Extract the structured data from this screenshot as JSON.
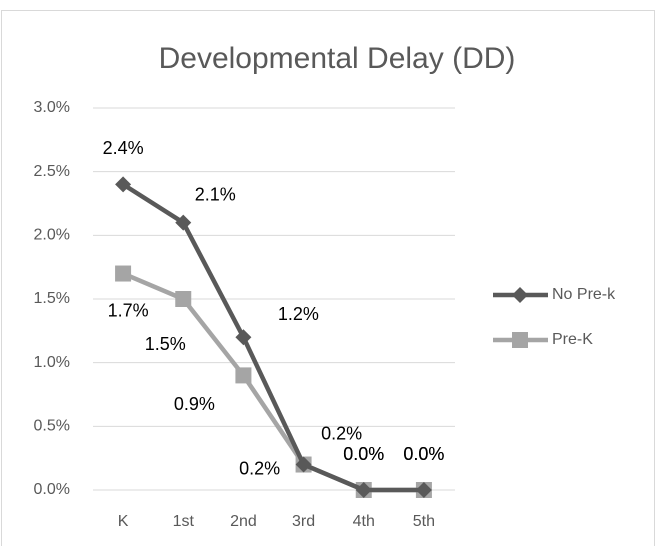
{
  "chart_data": {
    "type": "line",
    "title": "Developmental Delay (DD)",
    "categories": [
      "K",
      "1st",
      "2nd",
      "3rd",
      "4th",
      "5th"
    ],
    "series": [
      {
        "name": "No Pre-k",
        "color": "#595959",
        "values": [
          2.4,
          2.1,
          1.2,
          0.2,
          0.0,
          0.0
        ],
        "value_labels": [
          "2.4%",
          "2.1%",
          "1.2%",
          "0.2%",
          "0.0%",
          "0.0%"
        ]
      },
      {
        "name": "Pre-K",
        "color": "#a5a5a5",
        "values": [
          1.7,
          1.5,
          0.9,
          0.2,
          0.0,
          0.0
        ],
        "value_labels": [
          "1.7%",
          "1.5%",
          "0.9%",
          "0.2%",
          "0.0%",
          "0.0%"
        ]
      }
    ],
    "ylim": [
      0,
      3
    ],
    "yticks": [
      {
        "value": 0,
        "label": "0.0%"
      },
      {
        "value": 0.5,
        "label": "0.5%"
      },
      {
        "value": 1,
        "label": "1.0%"
      },
      {
        "value": 1.5,
        "label": "1.5%"
      },
      {
        "value": 2,
        "label": "2.0%"
      },
      {
        "value": 2.5,
        "label": "2.5%"
      },
      {
        "value": 3,
        "label": "3.0%"
      }
    ],
    "grid": true,
    "legend": "right"
  }
}
